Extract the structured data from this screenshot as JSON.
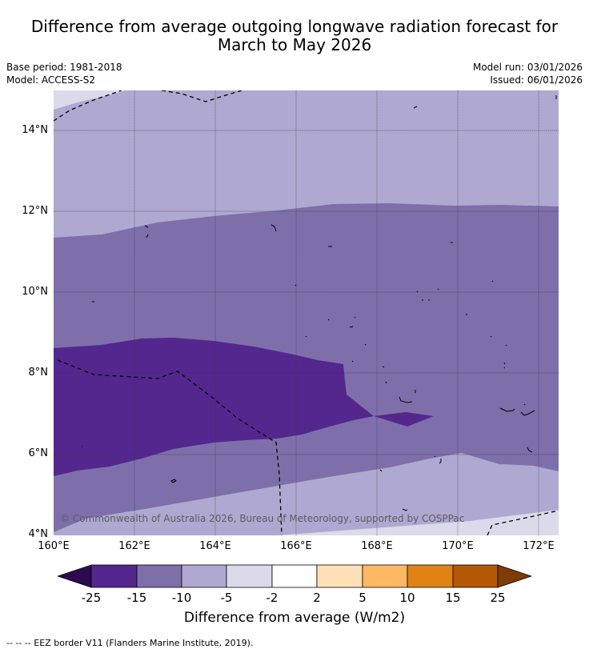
{
  "title_line1": "Difference from average outgoing longwave radiation forecast for",
  "title_line2": "March to May 2026",
  "base_period": "Base period: 1981-2018",
  "model": "Model: ACCESS-S2",
  "model_run": "Model run: 03/01/2026",
  "issued": "Issued: 06/01/2026",
  "copyright": "© Commonwealth of Australia 2026, Bureau of Meteorology, supported by COSPPac",
  "lat_labels": [
    "14°N",
    "12°N",
    "10°N",
    "8°N",
    "6°N",
    "4°N"
  ],
  "lon_labels": [
    "160°E",
    "162°E",
    "164°E",
    "166°E",
    "168°E",
    "170°E",
    "172°E"
  ],
  "colorbar": {
    "ticks": [
      "-25",
      "-15",
      "-10",
      "-5",
      "-2",
      "2",
      "5",
      "10",
      "15",
      "25"
    ],
    "colors": [
      "#2d0a4e",
      "#54278f",
      "#7e6fab",
      "#afa8d0",
      "#dadaeb",
      "#ffffff",
      "#fee0b6",
      "#fdb863",
      "#e08214",
      "#b35806",
      "#7f3b08"
    ],
    "label": "Difference from average (W/m2)"
  },
  "legend_note": "--  --  -- EEZ border V11 (Flanders Marine Institute, 2019).",
  "colors": {
    "lightest": "#dadaeb",
    "light": "#afa8d0",
    "mid": "#7e6fab",
    "dark": "#54278f"
  }
}
